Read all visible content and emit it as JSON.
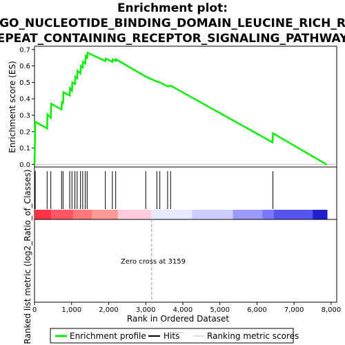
{
  "chart_data": {
    "type": "line",
    "title_lines": [
      "Enrichment plot:",
      "GO_NUCLEOTIDE_BINDING_DOMAIN_LEUCINE_RICH_R",
      "EPEAT_CONTAINING_RECEPTOR_SIGNALING_PATHWAY"
    ],
    "top_panel": {
      "ylabel": "Enrichment score (ES)",
      "ylim": [
        -0.015,
        0.72
      ],
      "yticks": [
        0.0,
        0.1,
        0.2,
        0.3,
        0.4,
        0.5,
        0.6,
        0.7
      ],
      "ytick_labels": [
        "0.0",
        "0.1",
        "0.2",
        "0.3",
        "0.4",
        "0.5",
        "0.6",
        "0.7"
      ],
      "profile_color": "#00ee00",
      "profile_points": [
        [
          0,
          0.0
        ],
        [
          20,
          0.26
        ],
        [
          340,
          0.22
        ],
        [
          350,
          0.305
        ],
        [
          440,
          0.285
        ],
        [
          450,
          0.37
        ],
        [
          730,
          0.335
        ],
        [
          740,
          0.385
        ],
        [
          770,
          0.37
        ],
        [
          780,
          0.44
        ],
        [
          950,
          0.42
        ],
        [
          960,
          0.465
        ],
        [
          1010,
          0.45
        ],
        [
          1020,
          0.5
        ],
        [
          1090,
          0.49
        ],
        [
          1100,
          0.535
        ],
        [
          1150,
          0.525
        ],
        [
          1160,
          0.57
        ],
        [
          1240,
          0.555
        ],
        [
          1250,
          0.6
        ],
        [
          1300,
          0.59
        ],
        [
          1310,
          0.625
        ],
        [
          1370,
          0.615
        ],
        [
          1380,
          0.66
        ],
        [
          1420,
          0.65
        ],
        [
          1430,
          0.68
        ],
        [
          1910,
          0.63
        ],
        [
          1920,
          0.645
        ],
        [
          2100,
          0.625
        ],
        [
          2110,
          0.64
        ],
        [
          2190,
          0.63
        ],
        [
          2200,
          0.64
        ],
        [
          3000,
          0.535
        ],
        [
          3300,
          0.505
        ],
        [
          3380,
          0.5
        ],
        [
          3590,
          0.475
        ],
        [
          3670,
          0.48
        ],
        [
          6420,
          0.135
        ],
        [
          6430,
          0.19
        ],
        [
          7880,
          0.0
        ]
      ]
    },
    "hits": [
      20,
      340,
      440,
      730,
      770,
      950,
      1010,
      1090,
      1150,
      1240,
      1300,
      1370,
      1420,
      1910,
      2100,
      2190,
      3000,
      3300,
      3380,
      3590,
      3670,
      6430
    ],
    "ranking_bar": {
      "segments": [
        {
          "from": 0,
          "to": 450,
          "color": "#ff3344"
        },
        {
          "from": 450,
          "to": 1050,
          "color": "#ff5566"
        },
        {
          "from": 1050,
          "to": 1550,
          "color": "#ff7777"
        },
        {
          "from": 1550,
          "to": 2250,
          "color": "#ff9999"
        },
        {
          "from": 2250,
          "to": 3150,
          "color": "#ffccdd"
        },
        {
          "from": 3150,
          "to": 4250,
          "color": "#e8e8ff"
        },
        {
          "from": 4250,
          "to": 5350,
          "color": "#ccccff"
        },
        {
          "from": 5350,
          "to": 6150,
          "color": "#9999ff"
        },
        {
          "from": 6150,
          "to": 6450,
          "color": "#7777ff"
        },
        {
          "from": 6450,
          "to": 7500,
          "color": "#5555ee"
        },
        {
          "from": 7500,
          "to": 7900,
          "color": "#2222cc"
        }
      ]
    },
    "bottom_panel": {
      "ylabel": "Ranked list metric (log2_Ratio_of_Classes)",
      "zero_cross_label": "Zero cross at 3159",
      "zero_cross_value": 3159
    },
    "xlabel": "Rank in Ordered Dataset",
    "xlim": [
      0,
      8150
    ],
    "xticks": [
      0,
      1000,
      2000,
      3000,
      4000,
      5000,
      6000,
      7000,
      8000
    ],
    "xtick_labels": [
      "0",
      "1,000",
      "2,000",
      "3,000",
      "4,000",
      "5,000",
      "6,000",
      "7,000",
      "8,000"
    ],
    "legend": {
      "placement": "bottom",
      "entries": [
        "Enrichment profile",
        "Hits",
        "Ranking metric scores"
      ]
    }
  }
}
